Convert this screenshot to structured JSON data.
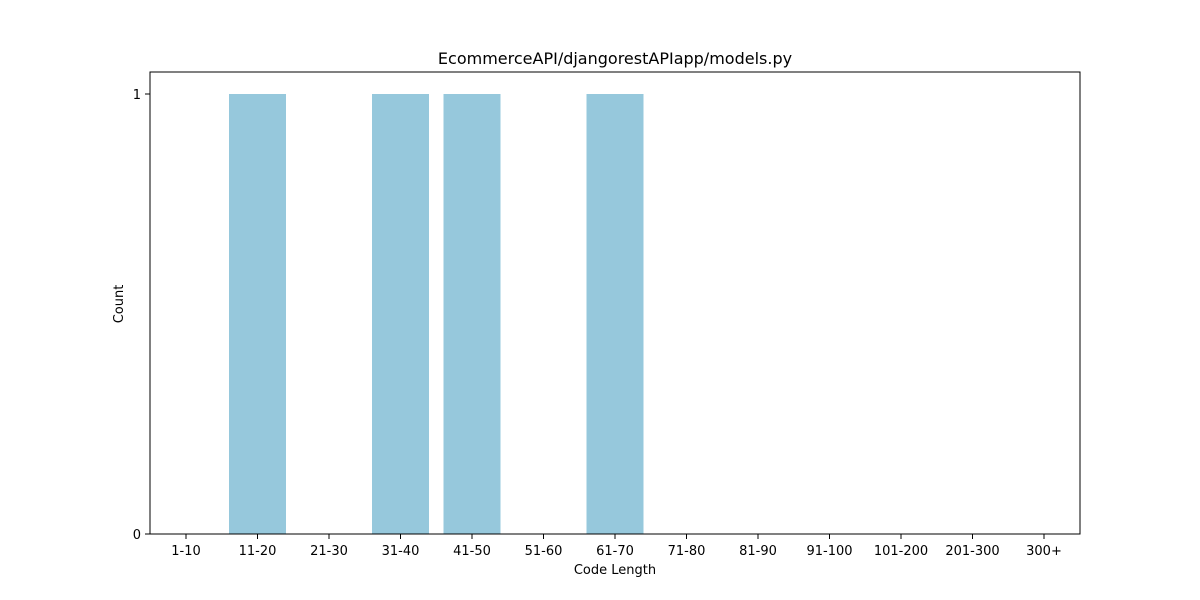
{
  "chart_data": {
    "type": "bar",
    "title": "EcommerceAPI/djangorestAPIapp/models.py",
    "xlabel": "Code Length",
    "ylabel": "Count",
    "categories": [
      "1-10",
      "11-20",
      "21-30",
      "31-40",
      "41-50",
      "51-60",
      "61-70",
      "71-80",
      "81-90",
      "91-100",
      "101-200",
      "201-300",
      "300+"
    ],
    "values": [
      0,
      1,
      0,
      1,
      1,
      0,
      1,
      0,
      0,
      0,
      0,
      0,
      0
    ],
    "ylim": [
      0,
      1.05
    ],
    "yticks": [
      0,
      1
    ],
    "grid": false,
    "bar_color": "#96c8dc"
  }
}
